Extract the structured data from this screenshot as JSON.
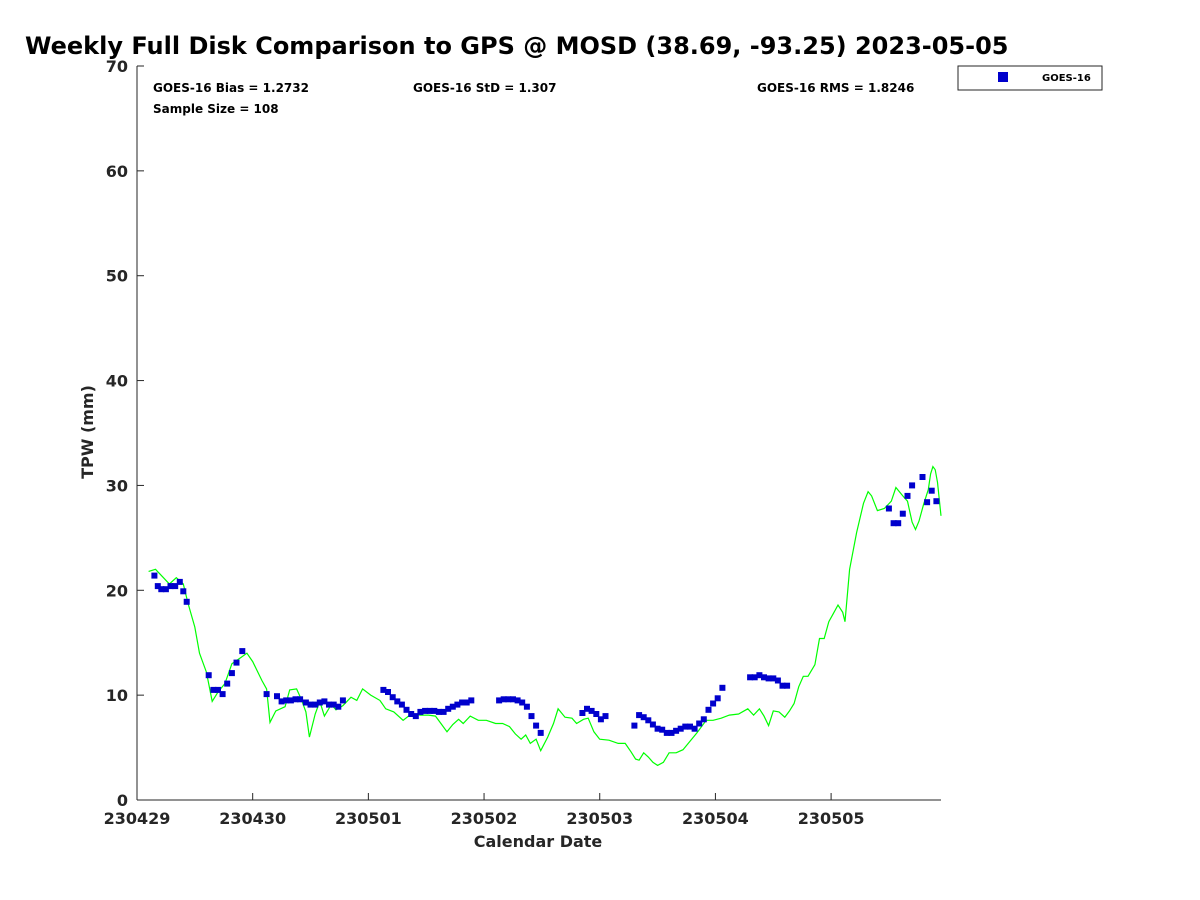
{
  "chart_data": {
    "type": "scatter",
    "title": "Weekly Full Disk Comparison to GPS @ MOSD (38.69, -93.25) 2023-05-05",
    "xlabel": "Calendar Date",
    "ylabel": "TPW (mm)",
    "xlim": [
      0,
      6.95
    ],
    "ylim": [
      0,
      70
    ],
    "xticks": [
      {
        "pos": 0,
        "label": "230429"
      },
      {
        "pos": 1,
        "label": "230430"
      },
      {
        "pos": 2,
        "label": "230501"
      },
      {
        "pos": 3,
        "label": "230502"
      },
      {
        "pos": 4,
        "label": "230503"
      },
      {
        "pos": 5,
        "label": "230504"
      },
      {
        "pos": 6,
        "label": "230505"
      }
    ],
    "yticks": [
      0,
      10,
      20,
      30,
      40,
      50,
      60,
      70
    ],
    "legend": {
      "location": "top-right",
      "entries": [
        "GOES-16"
      ]
    },
    "stats": {
      "bias": "GOES-16 Bias = 1.2732",
      "std": "GOES-16 StD = 1.307",
      "rms": "GOES-16 RMS = 1.8246",
      "sample": "Sample Size = 108"
    },
    "series": [
      {
        "name": "GOES-16",
        "kind": "scatter",
        "color": "#0000cc",
        "points": [
          [
            0.15,
            21.4
          ],
          [
            0.18,
            20.4
          ],
          [
            0.21,
            20.1
          ],
          [
            0.25,
            20.1
          ],
          [
            0.29,
            20.4
          ],
          [
            0.33,
            20.4
          ],
          [
            0.37,
            20.8
          ],
          [
            0.4,
            19.9
          ],
          [
            0.43,
            18.9
          ],
          [
            0.62,
            11.9
          ],
          [
            0.66,
            10.5
          ],
          [
            0.7,
            10.5
          ],
          [
            0.74,
            10.1
          ],
          [
            0.78,
            11.1
          ],
          [
            0.82,
            12.1
          ],
          [
            0.86,
            13.1
          ],
          [
            0.91,
            14.2
          ],
          [
            1.12,
            10.1
          ],
          [
            1.21,
            9.9
          ],
          [
            1.25,
            9.4
          ],
          [
            1.29,
            9.5
          ],
          [
            1.33,
            9.5
          ],
          [
            1.37,
            9.6
          ],
          [
            1.41,
            9.6
          ],
          [
            1.46,
            9.3
          ],
          [
            1.5,
            9.1
          ],
          [
            1.54,
            9.1
          ],
          [
            1.58,
            9.3
          ],
          [
            1.62,
            9.4
          ],
          [
            1.66,
            9.1
          ],
          [
            1.7,
            9.1
          ],
          [
            1.74,
            8.9
          ],
          [
            1.78,
            9.5
          ],
          [
            2.13,
            10.5
          ],
          [
            2.17,
            10.3
          ],
          [
            2.21,
            9.8
          ],
          [
            2.25,
            9.4
          ],
          [
            2.29,
            9.1
          ],
          [
            2.33,
            8.6
          ],
          [
            2.37,
            8.2
          ],
          [
            2.41,
            8.0
          ],
          [
            2.45,
            8.4
          ],
          [
            2.49,
            8.5
          ],
          [
            2.53,
            8.5
          ],
          [
            2.57,
            8.5
          ],
          [
            2.61,
            8.4
          ],
          [
            2.65,
            8.4
          ],
          [
            2.69,
            8.7
          ],
          [
            2.73,
            8.9
          ],
          [
            2.77,
            9.1
          ],
          [
            2.81,
            9.3
          ],
          [
            2.85,
            9.3
          ],
          [
            2.89,
            9.5
          ],
          [
            3.13,
            9.5
          ],
          [
            3.17,
            9.6
          ],
          [
            3.21,
            9.6
          ],
          [
            3.25,
            9.6
          ],
          [
            3.29,
            9.5
          ],
          [
            3.33,
            9.3
          ],
          [
            3.37,
            8.9
          ],
          [
            3.41,
            8.0
          ],
          [
            3.45,
            7.1
          ],
          [
            3.49,
            6.4
          ],
          [
            3.85,
            8.3
          ],
          [
            3.89,
            8.7
          ],
          [
            3.93,
            8.5
          ],
          [
            3.97,
            8.2
          ],
          [
            4.01,
            7.7
          ],
          [
            4.05,
            8.0
          ],
          [
            4.3,
            7.1
          ],
          [
            4.34,
            8.1
          ],
          [
            4.38,
            7.9
          ],
          [
            4.42,
            7.6
          ],
          [
            4.46,
            7.2
          ],
          [
            4.5,
            6.8
          ],
          [
            4.54,
            6.7
          ],
          [
            4.58,
            6.4
          ],
          [
            4.62,
            6.4
          ],
          [
            4.66,
            6.6
          ],
          [
            4.7,
            6.8
          ],
          [
            4.74,
            7.0
          ],
          [
            4.78,
            7.0
          ],
          [
            4.82,
            6.8
          ],
          [
            4.86,
            7.3
          ],
          [
            4.9,
            7.7
          ],
          [
            4.94,
            8.6
          ],
          [
            4.98,
            9.2
          ],
          [
            5.02,
            9.7
          ],
          [
            5.06,
            10.7
          ],
          [
            5.3,
            11.7
          ],
          [
            5.34,
            11.7
          ],
          [
            5.38,
            11.9
          ],
          [
            5.42,
            11.7
          ],
          [
            5.46,
            11.6
          ],
          [
            5.5,
            11.6
          ],
          [
            5.54,
            11.4
          ],
          [
            5.58,
            10.9
          ],
          [
            5.62,
            10.9
          ],
          [
            6.5,
            27.8
          ],
          [
            6.54,
            26.4
          ],
          [
            6.58,
            26.4
          ],
          [
            6.62,
            27.3
          ],
          [
            6.66,
            29.0
          ],
          [
            6.7,
            30.0
          ],
          [
            6.79,
            30.8
          ],
          [
            6.83,
            28.4
          ],
          [
            6.87,
            29.5
          ],
          [
            6.91,
            28.5
          ]
        ]
      },
      {
        "name": "GPS",
        "kind": "line",
        "color": "#00ff00",
        "points": [
          [
            0.1,
            21.8
          ],
          [
            0.16,
            22.0
          ],
          [
            0.22,
            21.3
          ],
          [
            0.28,
            20.6
          ],
          [
            0.34,
            21.2
          ],
          [
            0.4,
            20.6
          ],
          [
            0.44,
            18.8
          ],
          [
            0.5,
            16.5
          ],
          [
            0.54,
            14.0
          ],
          [
            0.6,
            12.2
          ],
          [
            0.65,
            9.4
          ],
          [
            0.7,
            10.3
          ],
          [
            0.76,
            11.1
          ],
          [
            0.82,
            13.0
          ],
          [
            0.9,
            13.6
          ],
          [
            0.95,
            14.0
          ],
          [
            1.0,
            13.2
          ],
          [
            1.08,
            11.4
          ],
          [
            1.12,
            10.6
          ],
          [
            1.15,
            7.4
          ],
          [
            1.2,
            8.5
          ],
          [
            1.28,
            8.9
          ],
          [
            1.32,
            10.5
          ],
          [
            1.38,
            10.6
          ],
          [
            1.42,
            9.6
          ],
          [
            1.46,
            8.4
          ],
          [
            1.49,
            6.0
          ],
          [
            1.54,
            8.2
          ],
          [
            1.58,
            9.4
          ],
          [
            1.62,
            8.0
          ],
          [
            1.68,
            9.1
          ],
          [
            1.72,
            8.6
          ],
          [
            1.78,
            9.0
          ],
          [
            1.85,
            9.8
          ],
          [
            1.9,
            9.5
          ],
          [
            1.95,
            10.6
          ],
          [
            2.02,
            10.0
          ],
          [
            2.1,
            9.5
          ],
          [
            2.15,
            8.7
          ],
          [
            2.22,
            8.4
          ],
          [
            2.3,
            7.6
          ],
          [
            2.37,
            8.2
          ],
          [
            2.45,
            8.1
          ],
          [
            2.52,
            8.1
          ],
          [
            2.58,
            8.0
          ],
          [
            2.62,
            7.4
          ],
          [
            2.68,
            6.5
          ],
          [
            2.73,
            7.2
          ],
          [
            2.78,
            7.7
          ],
          [
            2.82,
            7.3
          ],
          [
            2.88,
            8.0
          ],
          [
            2.95,
            7.6
          ],
          [
            3.02,
            7.6
          ],
          [
            3.1,
            7.3
          ],
          [
            3.16,
            7.3
          ],
          [
            3.22,
            7.0
          ],
          [
            3.27,
            6.3
          ],
          [
            3.32,
            5.8
          ],
          [
            3.36,
            6.2
          ],
          [
            3.4,
            5.4
          ],
          [
            3.45,
            5.8
          ],
          [
            3.49,
            4.7
          ],
          [
            3.55,
            6.0
          ],
          [
            3.6,
            7.3
          ],
          [
            3.64,
            8.7
          ],
          [
            3.7,
            7.9
          ],
          [
            3.76,
            7.8
          ],
          [
            3.8,
            7.3
          ],
          [
            3.86,
            7.7
          ],
          [
            3.9,
            7.8
          ],
          [
            3.95,
            6.5
          ],
          [
            4.0,
            5.8
          ],
          [
            4.08,
            5.7
          ],
          [
            4.16,
            5.4
          ],
          [
            4.22,
            5.4
          ],
          [
            4.27,
            4.6
          ],
          [
            4.31,
            3.9
          ],
          [
            4.34,
            3.8
          ],
          [
            4.38,
            4.5
          ],
          [
            4.42,
            4.1
          ],
          [
            4.46,
            3.6
          ],
          [
            4.5,
            3.3
          ],
          [
            4.55,
            3.6
          ],
          [
            4.6,
            4.5
          ],
          [
            4.66,
            4.5
          ],
          [
            4.72,
            4.8
          ],
          [
            4.78,
            5.6
          ],
          [
            4.84,
            6.4
          ],
          [
            4.92,
            7.6
          ],
          [
            4.98,
            7.6
          ],
          [
            5.05,
            7.8
          ],
          [
            5.12,
            8.1
          ],
          [
            5.2,
            8.2
          ],
          [
            5.28,
            8.7
          ],
          [
            5.33,
            8.1
          ],
          [
            5.38,
            8.7
          ],
          [
            5.42,
            8.0
          ],
          [
            5.46,
            7.1
          ],
          [
            5.5,
            8.5
          ],
          [
            5.55,
            8.4
          ],
          [
            5.6,
            7.9
          ],
          [
            5.64,
            8.5
          ],
          [
            5.68,
            9.2
          ],
          [
            5.72,
            10.8
          ],
          [
            5.76,
            11.8
          ],
          [
            5.8,
            11.8
          ],
          [
            5.86,
            12.9
          ],
          [
            5.9,
            15.4
          ],
          [
            5.94,
            15.4
          ],
          [
            5.98,
            17.0
          ],
          [
            6.02,
            17.8
          ],
          [
            6.06,
            18.6
          ],
          [
            6.1,
            17.9
          ],
          [
            6.12,
            17.0
          ],
          [
            6.16,
            22.0
          ],
          [
            6.22,
            25.5
          ],
          [
            6.28,
            28.3
          ],
          [
            6.32,
            29.4
          ],
          [
            6.35,
            29.0
          ],
          [
            6.4,
            27.6
          ],
          [
            6.46,
            27.8
          ],
          [
            6.52,
            28.5
          ],
          [
            6.56,
            29.8
          ],
          [
            6.62,
            29.0
          ],
          [
            6.66,
            28.5
          ],
          [
            6.7,
            26.5
          ],
          [
            6.73,
            25.8
          ],
          [
            6.76,
            26.6
          ],
          [
            6.8,
            28.2
          ],
          [
            6.84,
            29.6
          ],
          [
            6.86,
            31.1
          ],
          [
            6.88,
            31.8
          ],
          [
            6.9,
            31.5
          ],
          [
            6.92,
            30.3
          ],
          [
            6.94,
            28.2
          ],
          [
            6.95,
            27.1
          ]
        ]
      }
    ]
  }
}
